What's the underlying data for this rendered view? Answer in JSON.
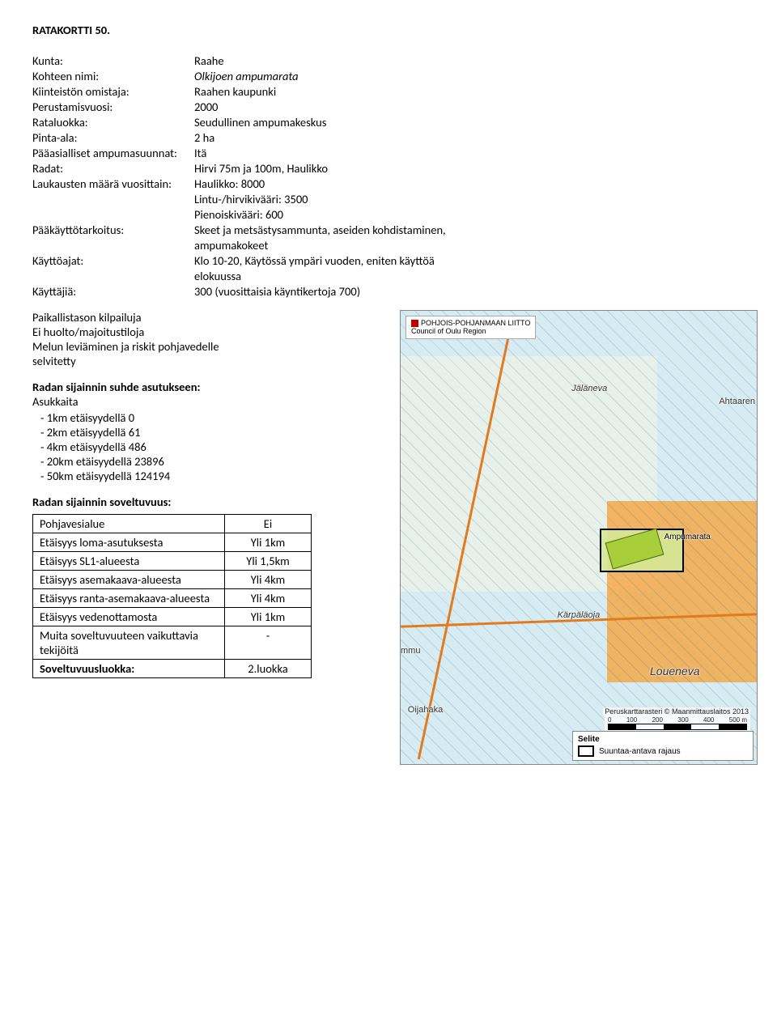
{
  "title": "RATAKORTTI 50.",
  "fields": {
    "kunta": {
      "k": "Kunta:",
      "v": "Raahe"
    },
    "kohteen_nimi": {
      "k": "Kohteen nimi:",
      "v": "Olkijoen ampumarata"
    },
    "kiinteiston_omistaja": {
      "k": "Kiinteistön omistaja:",
      "v": "Raahen kaupunki"
    },
    "perustamisvuosi": {
      "k": "Perustamisvuosi:",
      "v": "2000"
    },
    "rataluokka": {
      "k": "Rataluokka:",
      "v": "Seudullinen ampumakeskus"
    },
    "pinta_ala": {
      "k": "Pinta-ala:",
      "v": "2 ha"
    },
    "paaasialliset": {
      "k": "Pääasialliset ampumasuunnat:",
      "v": "Itä"
    },
    "radat": {
      "k": "Radat:",
      "v": "Hirvi 75m ja 100m, Haulikko"
    },
    "laukausten": {
      "k": "Laukausten määrä vuosittain:",
      "v1": "Haulikko: 8000",
      "v2": "Lintu-/hirvikivääri: 3500",
      "v3": "Pienoiskivääri: 600"
    },
    "paakayttotarkoitus": {
      "k": "Pääkäyttötarkoitus:",
      "v1": "Skeet ja metsästysammunta, aseiden kohdistaminen,",
      "v2": "ampumakokeet"
    },
    "kayttoajat": {
      "k": "Käyttöajat:",
      "v1": "Klo 10-20,  Käytössä ympäri vuoden, eniten käyttöä",
      "v2": "elokuussa"
    },
    "kayttajia": {
      "k": "Käyttäjiä:",
      "v": "300 (vuosittaisia käyntikertoja 700)"
    }
  },
  "extras": [
    "Paikallistason kilpailuja",
    "Ei huolto/majoitustiloja",
    "Melun leviäminen ja riskit pohjavedelle",
    "selvitetty"
  ],
  "sijainti": {
    "heading": "Radan sijainnin suhde asutukseen:",
    "sub": "Asukkaita",
    "items": [
      "1km etäisyydellä 0",
      "2km etäisyydellä 61",
      "4km etäisyydellä 486",
      "20km etäisyydellä 23896",
      "50km etäisyydellä 124194"
    ]
  },
  "soveltuvuus": {
    "heading": "Radan sijainnin soveltuvuus:",
    "rows": [
      {
        "k": "Pohjavesialue",
        "v": "Ei"
      },
      {
        "k": "Etäisyys loma-asutuksesta",
        "v": "Yli 1km"
      },
      {
        "k": "Etäisyys SL1-alueesta",
        "v": "Yli 1,5km"
      },
      {
        "k": "Etäisyys asemakaava-alueesta",
        "v": "Yli 4km"
      },
      {
        "k": "Etäisyys ranta-asemakaava-alueesta",
        "v": "Yli 4km"
      },
      {
        "k": "Etäisyys vedenottamosta",
        "v": "Yli 1km"
      },
      {
        "k": "Muita soveltuvuuteen vaikuttavia tekijöitä",
        "v": "-"
      }
    ],
    "final": {
      "k": "Soveltuvuusluokka:",
      "v": "2.luokka"
    }
  },
  "map": {
    "logo_line1": "POHJOIS-POHJANMAAN LIITTO",
    "logo_line2": "Council of Oulu Region",
    "labels": {
      "jaleneva": "Jäläneva",
      "ahtaaren": "Ahtaaren",
      "ampumarata": "Ampumarata",
      "karpalaoja": "Kärpäläoja",
      "loueneva": "Loueneva",
      "oijahaka": "Oijahaka",
      "mmu": "mmu"
    },
    "legend_title": "Selite",
    "legend_item": "Suuntaa-antava rajaus",
    "credit1": "Peruskarttarasteri © Maanmittauslaitos 2013",
    "scale_ticks": [
      "0",
      "100",
      "200",
      "300",
      "400",
      "500 m"
    ]
  }
}
